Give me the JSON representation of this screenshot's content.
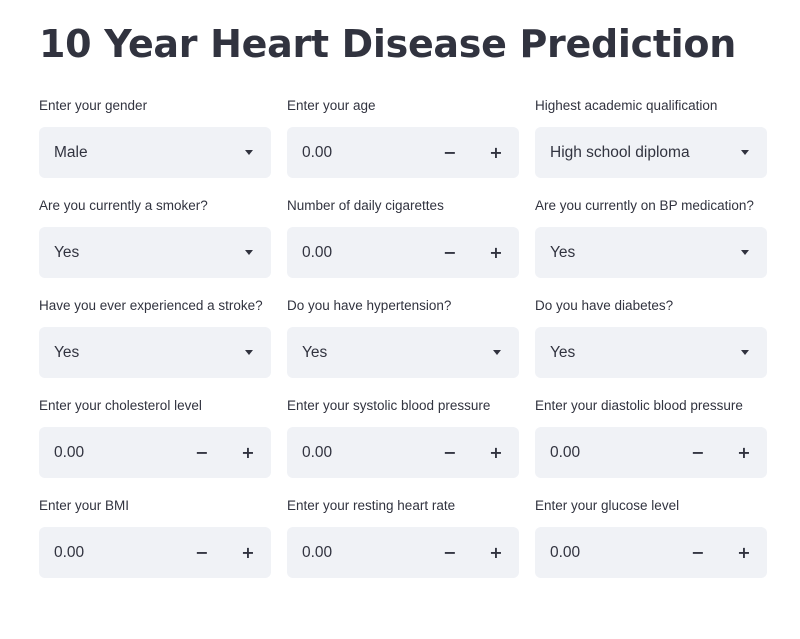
{
  "page": {
    "title": "10 Year Heart Disease Prediction"
  },
  "icons": {
    "minus": "minus-icon",
    "plus": "plus-icon",
    "dropdown": "chevron-down-icon"
  },
  "stepper": {
    "minus_symbol": "−",
    "plus_symbol": "+"
  },
  "fields": [
    {
      "label": "Enter your gender",
      "type": "select",
      "value": "Male"
    },
    {
      "label": "Enter your age",
      "type": "number",
      "value": "0.00"
    },
    {
      "label": "Highest academic qualification",
      "type": "select",
      "value": "High school diploma"
    },
    {
      "label": "Are you currently a smoker?",
      "type": "select",
      "value": "Yes"
    },
    {
      "label": "Number of daily cigarettes",
      "type": "number",
      "value": "0.00"
    },
    {
      "label": "Are you currently on BP medication?",
      "type": "select",
      "value": "Yes"
    },
    {
      "label": "Have you ever experienced a stroke?",
      "type": "select",
      "value": "Yes"
    },
    {
      "label": "Do you have hypertension?",
      "type": "select",
      "value": "Yes"
    },
    {
      "label": "Do you have diabetes?",
      "type": "select",
      "value": "Yes"
    },
    {
      "label": "Enter your cholesterol level",
      "type": "number",
      "value": "0.00"
    },
    {
      "label": "Enter your systolic blood pressure",
      "type": "number",
      "value": "0.00"
    },
    {
      "label": "Enter your diastolic blood pressure",
      "type": "number",
      "value": "0.00"
    },
    {
      "label": "Enter your BMI",
      "type": "number",
      "value": "0.00"
    },
    {
      "label": "Enter your resting heart rate",
      "type": "number",
      "value": "0.00"
    },
    {
      "label": "Enter your glucose level",
      "type": "number",
      "value": "0.00"
    }
  ]
}
